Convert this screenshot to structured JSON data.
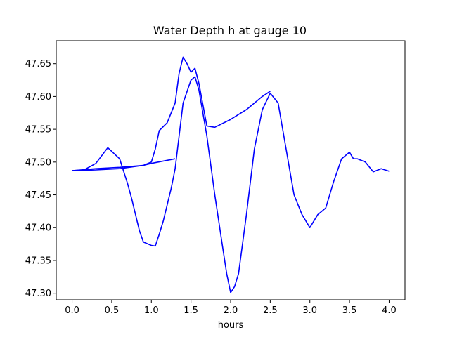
{
  "chart_data": {
    "type": "line",
    "title": "Water Depth h at gauge 10",
    "xlabel": "hours",
    "ylabel": "",
    "xlim": [
      -0.2,
      4.2
    ],
    "ylim": [
      47.29,
      47.685
    ],
    "xticks": [
      0.0,
      0.5,
      1.0,
      1.5,
      2.0,
      2.5,
      3.0,
      3.5,
      4.0
    ],
    "xtick_labels": [
      "0.0",
      "0.5",
      "1.0",
      "1.5",
      "2.0",
      "2.5",
      "3.0",
      "3.5",
      "4.0"
    ],
    "yticks": [
      47.3,
      47.35,
      47.4,
      47.45,
      47.5,
      47.55,
      47.6,
      47.65
    ],
    "ytick_labels": [
      "47.30",
      "47.35",
      "47.40",
      "47.45",
      "47.50",
      "47.55",
      "47.60",
      "47.65"
    ],
    "grid": false,
    "color": "#0000ff",
    "series": [
      {
        "name": "",
        "x": [
          0.0,
          0.15,
          0.3,
          0.45,
          0.6,
          0.7,
          0.75,
          0.85,
          0.9,
          1.0,
          1.05,
          1.1,
          1.15,
          1.25,
          1.3,
          1.4,
          1.5,
          1.55,
          1.6,
          1.7,
          1.8,
          1.9,
          1.95,
          2.0,
          2.05,
          2.1,
          2.2,
          2.3,
          2.4,
          2.5,
          2.6,
          2.7,
          2.8,
          2.9,
          3.0,
          3.1,
          3.2,
          3.3,
          3.4,
          3.5,
          3.55,
          3.6,
          3.7,
          3.8,
          3.9,
          4.0
        ],
        "y": [
          47.487,
          47.488,
          47.498,
          47.522,
          47.505,
          47.467,
          47.445,
          47.395,
          47.378,
          47.373,
          47.372,
          47.39,
          47.41,
          47.46,
          47.49,
          47.59,
          47.625,
          47.63,
          47.61,
          47.54,
          47.45,
          47.37,
          47.33,
          47.301,
          47.31,
          47.33,
          47.42,
          47.52,
          47.58,
          47.605,
          47.59,
          47.52,
          47.45,
          47.42,
          47.4,
          47.42,
          47.43,
          47.47,
          47.505,
          47.515,
          47.505,
          47.505,
          47.5,
          47.485,
          47.49,
          47.486
        ]
      },
      {
        "name": "",
        "x": [
          0.0,
          0.3,
          0.6,
          0.9,
          1.0,
          1.05,
          1.1,
          1.2,
          1.3,
          1.35,
          1.4,
          1.45,
          1.5,
          1.55,
          1.6,
          1.7,
          1.8,
          2.0,
          2.2,
          2.4,
          2.5
        ],
        "y": [
          47.487,
          47.49,
          47.492,
          47.495,
          47.5,
          47.52,
          47.548,
          47.56,
          47.59,
          47.635,
          47.66,
          47.65,
          47.637,
          47.643,
          47.62,
          47.555,
          47.553,
          47.565,
          47.58,
          47.6,
          47.608
        ]
      },
      {
        "name": "",
        "x": [
          0.0,
          0.3,
          0.6,
          0.9,
          1.0,
          1.3
        ],
        "y": [
          47.487,
          47.488,
          47.49,
          47.495,
          47.498,
          47.505
        ]
      }
    ]
  }
}
